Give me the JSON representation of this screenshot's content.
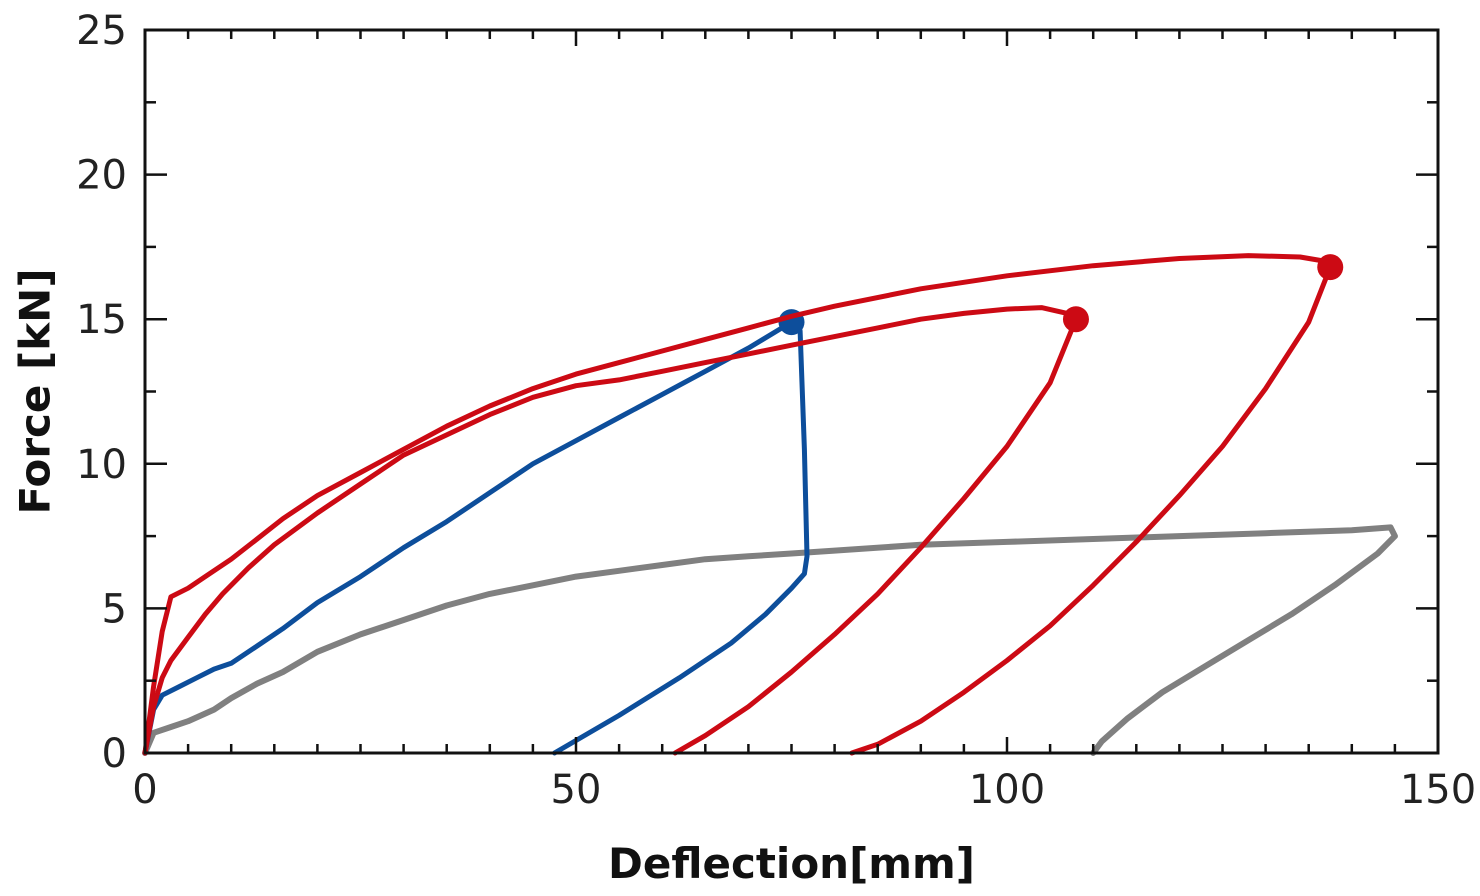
{
  "chart_data": {
    "type": "line",
    "title": "",
    "xlabel": "Deflection[mm]",
    "ylabel": "Force [kN]",
    "xlim": [
      0,
      150
    ],
    "ylim": [
      0,
      25
    ],
    "x_ticks": [
      0,
      50,
      100,
      150
    ],
    "y_ticks": [
      0,
      5,
      10,
      15,
      20,
      25
    ],
    "x_tick_labels": [
      "0",
      "50",
      "100",
      "150"
    ],
    "y_tick_labels": [
      "0",
      "5",
      "10",
      "15",
      "20",
      "25"
    ],
    "grid": false,
    "legend": "none",
    "series": [
      {
        "color": "#808080",
        "stroke_width": 6,
        "marker_end": false,
        "points": [
          [
            0,
            0
          ],
          [
            1,
            0.7
          ],
          [
            3,
            0.9
          ],
          [
            5,
            1.1
          ],
          [
            8,
            1.5
          ],
          [
            10,
            1.9
          ],
          [
            13,
            2.4
          ],
          [
            16,
            2.8
          ],
          [
            20,
            3.5
          ],
          [
            25,
            4.1
          ],
          [
            30,
            4.6
          ],
          [
            35,
            5.1
          ],
          [
            40,
            5.5
          ],
          [
            45,
            5.8
          ],
          [
            50,
            6.1
          ],
          [
            55,
            6.3
          ],
          [
            60,
            6.5
          ],
          [
            65,
            6.7
          ],
          [
            70,
            6.8
          ],
          [
            75,
            6.9
          ],
          [
            80,
            7.0
          ],
          [
            90,
            7.2
          ],
          [
            100,
            7.3
          ],
          [
            110,
            7.4
          ],
          [
            120,
            7.5
          ],
          [
            130,
            7.6
          ],
          [
            140,
            7.7
          ],
          [
            144.5,
            7.8
          ],
          [
            145,
            7.5
          ],
          [
            143,
            6.9
          ],
          [
            138,
            5.8
          ],
          [
            133,
            4.8
          ],
          [
            128,
            3.9
          ],
          [
            123,
            3.0
          ],
          [
            118,
            2.1
          ],
          [
            114,
            1.2
          ],
          [
            111,
            0.4
          ],
          [
            110,
            0
          ]
        ]
      },
      {
        "color": "#0d4e9b",
        "stroke_width": 5,
        "marker_end": true,
        "points": [
          [
            47.5,
            0
          ],
          [
            55,
            1.3
          ],
          [
            62,
            2.6
          ],
          [
            68,
            3.8
          ],
          [
            72,
            4.8
          ],
          [
            75,
            5.7
          ],
          [
            76.5,
            6.2
          ],
          [
            76.8,
            6.8
          ],
          [
            76.5,
            10.5
          ],
          [
            76,
            14.6
          ],
          [
            75,
            14.9
          ]
        ],
        "peak": [
          75,
          14.9
        ],
        "loading_points": [
          [
            0,
            0
          ],
          [
            1,
            1.5
          ],
          [
            2,
            2.0
          ],
          [
            4,
            2.3
          ],
          [
            6,
            2.6
          ],
          [
            8,
            2.9
          ],
          [
            10,
            3.1
          ],
          [
            13,
            3.7
          ],
          [
            16,
            4.3
          ],
          [
            20,
            5.2
          ],
          [
            25,
            6.1
          ],
          [
            30,
            7.1
          ],
          [
            35,
            8.0
          ],
          [
            40,
            9.0
          ],
          [
            45,
            10.0
          ],
          [
            50,
            10.8
          ],
          [
            55,
            11.6
          ],
          [
            60,
            12.4
          ],
          [
            65,
            13.2
          ],
          [
            70,
            14.0
          ],
          [
            75,
            14.9
          ]
        ]
      },
      {
        "color": "#cc0a14",
        "stroke_width": 5,
        "marker_end": true,
        "loading_points": [
          [
            0,
            0
          ],
          [
            1,
            1.6
          ],
          [
            2,
            2.6
          ],
          [
            3,
            3.2
          ],
          [
            5,
            4.0
          ],
          [
            7,
            4.8
          ],
          [
            9,
            5.5
          ],
          [
            12,
            6.4
          ],
          [
            15,
            7.2
          ],
          [
            20,
            8.3
          ],
          [
            25,
            9.3
          ],
          [
            30,
            10.3
          ],
          [
            35,
            11.0
          ],
          [
            40,
            11.7
          ],
          [
            45,
            12.3
          ],
          [
            50,
            12.7
          ],
          [
            55,
            12.9
          ],
          [
            60,
            13.2
          ],
          [
            65,
            13.5
          ],
          [
            70,
            13.8
          ],
          [
            75,
            14.1
          ],
          [
            80,
            14.4
          ],
          [
            85,
            14.7
          ],
          [
            90,
            15.0
          ],
          [
            95,
            15.2
          ],
          [
            100,
            15.35
          ],
          [
            104,
            15.4
          ],
          [
            107,
            15.2
          ],
          [
            108,
            15.0
          ]
        ],
        "unloading_points": [
          [
            108,
            15.0
          ],
          [
            105,
            12.8
          ],
          [
            100,
            10.6
          ],
          [
            95,
            8.8
          ],
          [
            90,
            7.1
          ],
          [
            85,
            5.5
          ],
          [
            80,
            4.1
          ],
          [
            75,
            2.8
          ],
          [
            70,
            1.6
          ],
          [
            65,
            0.6
          ],
          [
            61.5,
            0
          ]
        ],
        "peak": [
          108,
          15.0
        ]
      },
      {
        "color": "#cc0a14",
        "stroke_width": 5,
        "marker_end": true,
        "loading_points": [
          [
            0,
            0
          ],
          [
            1,
            2.3
          ],
          [
            2,
            4.2
          ],
          [
            3,
            5.4
          ],
          [
            5,
            5.7
          ],
          [
            7,
            6.1
          ],
          [
            10,
            6.7
          ],
          [
            13,
            7.4
          ],
          [
            16,
            8.1
          ],
          [
            20,
            8.9
          ],
          [
            25,
            9.7
          ],
          [
            30,
            10.5
          ],
          [
            35,
            11.3
          ],
          [
            40,
            12.0
          ],
          [
            45,
            12.6
          ],
          [
            50,
            13.1
          ],
          [
            55,
            13.5
          ],
          [
            60,
            13.9
          ],
          [
            65,
            14.3
          ],
          [
            70,
            14.7
          ],
          [
            75,
            15.1
          ],
          [
            80,
            15.45
          ],
          [
            90,
            16.05
          ],
          [
            100,
            16.5
          ],
          [
            110,
            16.85
          ],
          [
            120,
            17.1
          ],
          [
            128,
            17.2
          ],
          [
            134,
            17.15
          ],
          [
            137,
            17.0
          ],
          [
            137.5,
            16.8
          ]
        ],
        "unloading_points": [
          [
            137.5,
            16.8
          ],
          [
            135,
            14.9
          ],
          [
            130,
            12.6
          ],
          [
            125,
            10.6
          ],
          [
            120,
            8.9
          ],
          [
            115,
            7.3
          ],
          [
            110,
            5.8
          ],
          [
            105,
            4.4
          ],
          [
            100,
            3.2
          ],
          [
            95,
            2.1
          ],
          [
            90,
            1.1
          ],
          [
            85,
            0.3
          ],
          [
            82,
            0
          ]
        ],
        "peak": [
          137.5,
          16.8
        ]
      }
    ]
  }
}
